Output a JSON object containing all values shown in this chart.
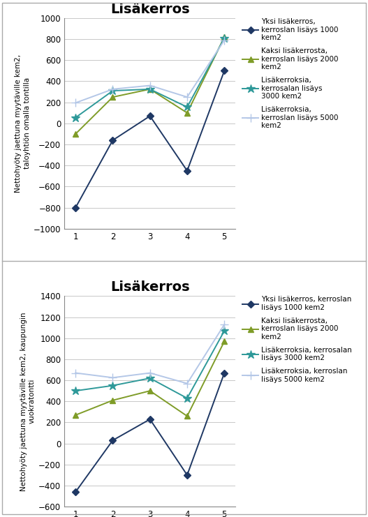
{
  "chart1": {
    "title": "Lisäkerros",
    "ylabel": "Nettohyöty jaettuna myytäville kem2,\ntaloyhtiön omalla tontilla",
    "xlim": [
      0.7,
      5.3
    ],
    "ylim": [
      -1000,
      1000
    ],
    "yticks": [
      -1000,
      -800,
      -600,
      -400,
      -200,
      0,
      200,
      400,
      600,
      800,
      1000
    ],
    "xticks": [
      1,
      2,
      3,
      4,
      5
    ],
    "series": [
      {
        "label": "Yksi lisäkerros,\nkerroslan lisäys 1000\nkem2",
        "color": "#1F3864",
        "marker": "D",
        "values": [
          -800,
          -160,
          70,
          -450,
          500
        ]
      },
      {
        "label": "Kaksi lisäkerrosta,\nkerroslan lisäys 2000\nkem2",
        "color": "#7F9C28",
        "marker": "^",
        "values": [
          -100,
          250,
          325,
          100,
          820
        ]
      },
      {
        "label": "Lisäkerroksia,\nkerrosalan lisäys\n3000 kem2",
        "color": "#2E9999",
        "marker": "*",
        "values": [
          55,
          310,
          325,
          155,
          810
        ]
      },
      {
        "label": "Lisäkerroksia,\nkerroslan lisäys 5000\nkem2",
        "color": "#B4C7E7",
        "marker": "+",
        "values": [
          195,
          325,
          360,
          250,
          790
        ]
      }
    ]
  },
  "chart2": {
    "title": "Lisäkerros",
    "ylabel": "Nettohyöty jaettuna myytäville kem2, kaupungin\nvuokratontti",
    "xlim": [
      0.7,
      5.3
    ],
    "ylim": [
      -600,
      1400
    ],
    "yticks": [
      -600,
      -400,
      -200,
      0,
      200,
      400,
      600,
      800,
      1000,
      1200,
      1400
    ],
    "xticks": [
      1,
      2,
      3,
      4,
      5
    ],
    "series": [
      {
        "label": "Yksi lisäkerros, kerroslan\nlisäys 1000 kem2",
        "color": "#1F3864",
        "marker": "D",
        "values": [
          -460,
          30,
          230,
          -300,
          670
        ]
      },
      {
        "label": "Kaksi lisäkerrosta,\nkerroslan lisäys 2000\nkem2",
        "color": "#7F9C28",
        "marker": "^",
        "values": [
          270,
          410,
          500,
          260,
          970
        ]
      },
      {
        "label": "Lisäkerroksia, kerrosalan\nlisäys 3000 kem2",
        "color": "#2E9999",
        "marker": "*",
        "values": [
          500,
          550,
          620,
          430,
          1070
        ]
      },
      {
        "label": "Lisäkerroksia, kerroslan\nlisäys 5000 kem2",
        "color": "#B4C7E7",
        "marker": "+",
        "values": [
          670,
          625,
          670,
          570,
          1130
        ]
      }
    ]
  },
  "background_color": "#ffffff",
  "plot_bg_color": "#ffffff",
  "grid_color": "#c8c8c8",
  "outer_border_color": "#aaaaaa",
  "title_fontsize": 14,
  "label_fontsize": 7.5,
  "legend_fontsize": 7.5,
  "tick_fontsize": 8.5
}
